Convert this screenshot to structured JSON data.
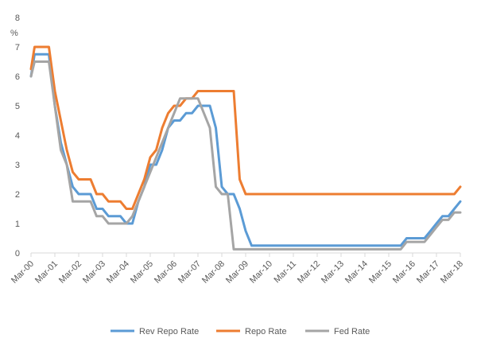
{
  "chart_data": {
    "type": "line",
    "title": "",
    "ylabel": "%",
    "xlabel": "",
    "ylim": [
      0,
      8
    ],
    "yticks": [
      0,
      1,
      2,
      3,
      4,
      5,
      6,
      7,
      8
    ],
    "xlim": [
      2000.0,
      2018.0
    ],
    "xticks": [
      {
        "x": 2000,
        "label": "Mar-00"
      },
      {
        "x": 2001,
        "label": "Mar-01"
      },
      {
        "x": 2002,
        "label": "Mar-02"
      },
      {
        "x": 2003,
        "label": "Mar-03"
      },
      {
        "x": 2004,
        "label": "Mar-04"
      },
      {
        "x": 2005,
        "label": "Mar-05"
      },
      {
        "x": 2006,
        "label": "Mar-06"
      },
      {
        "x": 2007,
        "label": "Mar-07"
      },
      {
        "x": 2008,
        "label": "Mar-08"
      },
      {
        "x": 2009,
        "label": "Mar-09"
      },
      {
        "x": 2010,
        "label": "Mar-10"
      },
      {
        "x": 2011,
        "label": "Mar-11"
      },
      {
        "x": 2012,
        "label": "Mar-12"
      },
      {
        "x": 2013,
        "label": "Mar-13"
      },
      {
        "x": 2014,
        "label": "Mar-14"
      },
      {
        "x": 2015,
        "label": "Mar-15"
      },
      {
        "x": 2016,
        "label": "Mar-16"
      },
      {
        "x": 2017,
        "label": "Mar-17"
      },
      {
        "x": 2018,
        "label": "Mar-18"
      }
    ],
    "x_note": "x values are fractional years; 2000.0 corresponds to Mar-00",
    "series": [
      {
        "name": "Rev Repo Rate",
        "color": "#5B9BD5",
        "x": [
          2000.0,
          2000.15,
          2000.55,
          2000.75,
          2001.0,
          2001.25,
          2001.5,
          2001.75,
          2002.0,
          2002.25,
          2002.5,
          2002.75,
          2003.0,
          2003.25,
          2003.5,
          2003.75,
          2004.0,
          2004.25,
          2004.5,
          2004.75,
          2005.0,
          2005.25,
          2005.5,
          2005.75,
          2006.0,
          2006.25,
          2006.5,
          2006.75,
          2007.0,
          2007.25,
          2007.5,
          2007.75,
          2008.0,
          2008.25,
          2008.5,
          2008.75,
          2009.0,
          2009.25,
          2009.5,
          2015.5,
          2015.75,
          2016.0,
          2016.25,
          2016.5,
          2016.75,
          2017.0,
          2017.25,
          2017.5,
          2017.75,
          2018.0
        ],
        "values": [
          6.0,
          6.75,
          6.75,
          6.75,
          5.0,
          3.75,
          3.0,
          2.25,
          2.0,
          2.0,
          2.0,
          1.5,
          1.5,
          1.25,
          1.25,
          1.25,
          1.0,
          1.0,
          1.75,
          2.25,
          3.0,
          3.0,
          3.5,
          4.25,
          4.5,
          4.5,
          4.75,
          4.75,
          5.0,
          5.0,
          5.0,
          4.25,
          2.25,
          2.0,
          2.0,
          1.5,
          0.75,
          0.25,
          0.25,
          0.25,
          0.5,
          0.5,
          0.5,
          0.5,
          0.75,
          1.0,
          1.25,
          1.25,
          1.5,
          1.75
        ]
      },
      {
        "name": "Repo Rate",
        "color": "#ED7D31",
        "x": [
          2000.0,
          2000.15,
          2000.55,
          2000.75,
          2001.0,
          2001.25,
          2001.5,
          2001.75,
          2002.0,
          2002.25,
          2002.5,
          2002.75,
          2003.0,
          2003.25,
          2003.5,
          2003.75,
          2004.0,
          2004.25,
          2004.5,
          2004.75,
          2005.0,
          2005.25,
          2005.5,
          2005.75,
          2006.0,
          2006.25,
          2006.5,
          2006.75,
          2007.0,
          2007.25,
          2008.5,
          2008.75,
          2009.0,
          2017.75,
          2018.0
        ],
        "values": [
          6.25,
          7.0,
          7.0,
          7.0,
          5.5,
          4.5,
          3.5,
          2.75,
          2.5,
          2.5,
          2.5,
          2.0,
          2.0,
          1.75,
          1.75,
          1.75,
          1.5,
          1.5,
          2.0,
          2.5,
          3.25,
          3.5,
          4.25,
          4.75,
          5.0,
          5.0,
          5.25,
          5.25,
          5.5,
          5.5,
          5.5,
          2.5,
          2.0,
          2.0,
          2.25
        ]
      },
      {
        "name": "Fed Rate",
        "color": "#A5A5A5",
        "x": [
          2000.0,
          2000.15,
          2000.55,
          2000.75,
          2001.0,
          2001.25,
          2001.5,
          2001.75,
          2002.0,
          2002.25,
          2002.5,
          2002.75,
          2003.0,
          2003.25,
          2003.5,
          2003.75,
          2004.0,
          2004.25,
          2004.5,
          2004.75,
          2005.0,
          2005.25,
          2005.5,
          2005.75,
          2006.0,
          2006.25,
          2006.5,
          2006.75,
          2007.0,
          2007.25,
          2007.5,
          2007.75,
          2008.0,
          2008.25,
          2008.5,
          2008.75,
          2015.5,
          2015.75,
          2016.0,
          2016.25,
          2016.5,
          2016.75,
          2017.0,
          2017.25,
          2017.5,
          2017.75,
          2018.0
        ],
        "values": [
          6.0,
          6.5,
          6.5,
          6.5,
          5.0,
          3.5,
          3.0,
          1.75,
          1.75,
          1.75,
          1.75,
          1.25,
          1.25,
          1.0,
          1.0,
          1.0,
          1.0,
          1.25,
          1.75,
          2.25,
          2.75,
          3.25,
          3.75,
          4.25,
          4.75,
          5.25,
          5.25,
          5.25,
          5.25,
          4.75,
          4.25,
          2.25,
          2.0,
          2.0,
          0.125,
          0.125,
          0.125,
          0.375,
          0.375,
          0.375,
          0.375,
          0.625,
          0.875,
          1.125,
          1.125,
          1.375,
          1.375
        ]
      }
    ],
    "legend": {
      "position": "bottom",
      "entries": [
        "Rev Repo Rate",
        "Repo Rate",
        "Fed Rate"
      ]
    },
    "grid": false
  }
}
